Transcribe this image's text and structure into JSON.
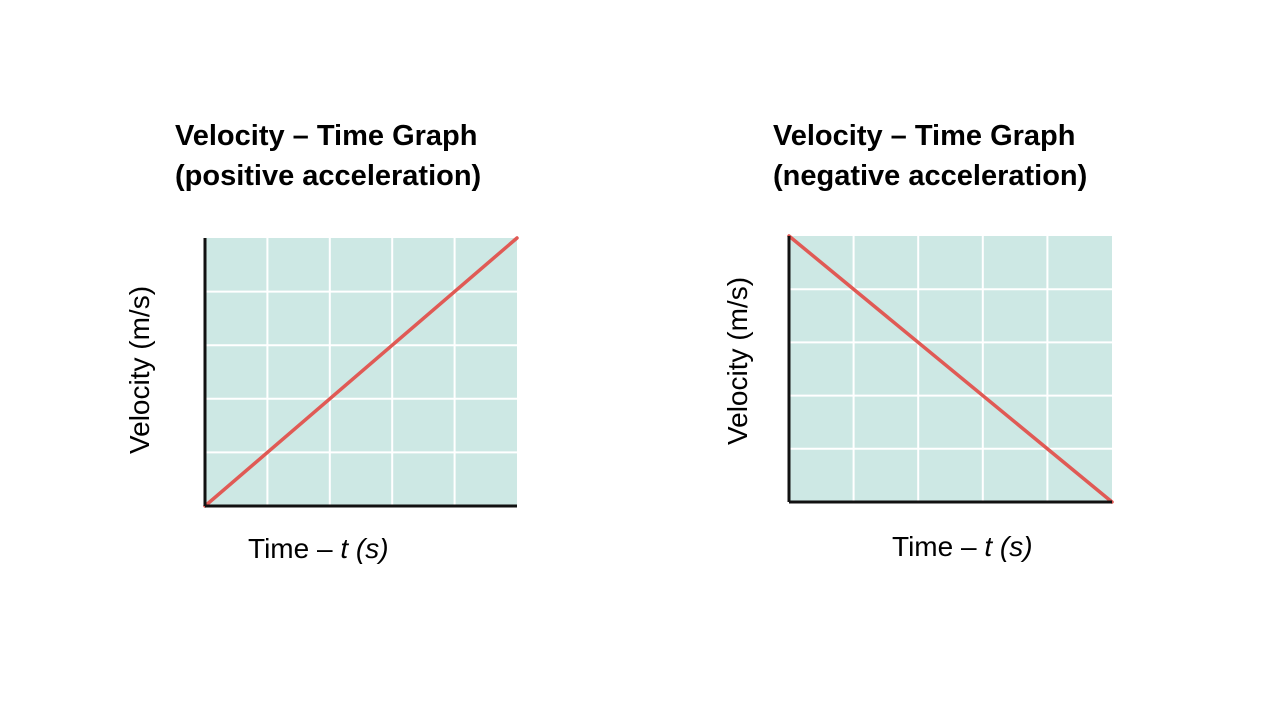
{
  "colors": {
    "plot_bg": "#cde8e4",
    "grid": "#ffffff",
    "axis": "#111111",
    "line": "#e05a55"
  },
  "chart_data": [
    {
      "type": "line",
      "title": [
        "Velocity – Time Graph",
        "(positive acceleration)"
      ],
      "xlabel": {
        "main": "Time – ",
        "italic": "t (s)"
      },
      "ylabel": "Velocity (m/s)",
      "grid": true,
      "xlim": [
        0,
        5
      ],
      "ylim": [
        0,
        5
      ],
      "series": [
        {
          "name": "velocity",
          "x": [
            0,
            5
          ],
          "y": [
            0,
            5
          ]
        }
      ]
    },
    {
      "type": "line",
      "title": [
        "Velocity – Time Graph",
        "(negative acceleration)"
      ],
      "xlabel": {
        "main": "Time – ",
        "italic": "t (s)"
      },
      "ylabel": "Velocity (m/s)",
      "grid": true,
      "xlim": [
        0,
        5
      ],
      "ylim": [
        0,
        5
      ],
      "series": [
        {
          "name": "velocity",
          "x": [
            0,
            5
          ],
          "y": [
            5,
            0
          ]
        }
      ]
    }
  ]
}
